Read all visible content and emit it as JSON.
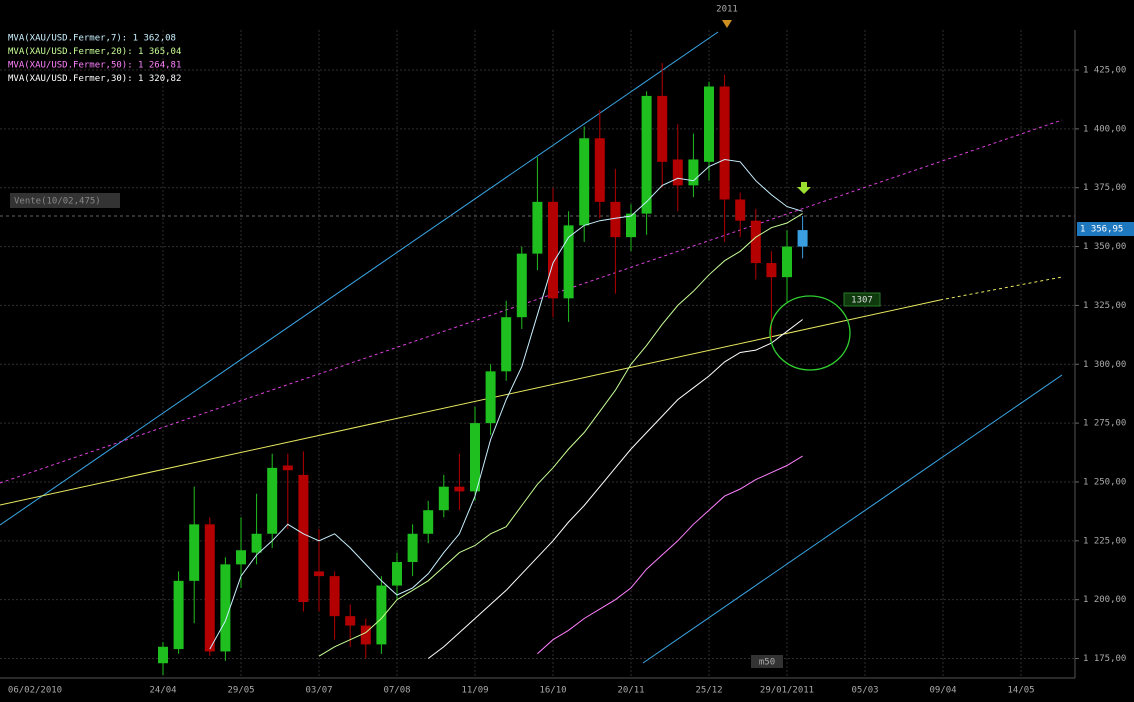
{
  "chart_data": {
    "type": "candlestick",
    "categories": [
      "06/02/2010",
      null,
      null,
      null,
      null,
      null,
      null,
      null,
      null,
      null,
      null,
      "24/04",
      null,
      null,
      null,
      null,
      "29/05",
      null,
      null,
      null,
      null,
      "03/07",
      null,
      null,
      null,
      null,
      "07/08",
      null,
      null,
      null,
      null,
      "11/09",
      null,
      null,
      null,
      null,
      "16/10",
      null,
      null,
      null,
      null,
      "20/11",
      null,
      null,
      null,
      null,
      "25/12",
      null,
      null,
      null,
      null,
      "29/01/2011",
      null,
      null,
      null,
      null,
      "05/03",
      null,
      null,
      null,
      null,
      "09/04",
      null,
      null,
      null,
      null,
      "14/05",
      null,
      null,
      null
    ],
    "open": [
      null,
      null,
      null,
      null,
      null,
      null,
      null,
      null,
      null,
      null,
      null,
      1173,
      1179,
      1208,
      1232,
      1178,
      1215,
      1220,
      1228,
      1257,
      1253,
      1212,
      1210,
      1193,
      1189,
      1181,
      1206,
      1216,
      1228,
      1238,
      1248,
      1246,
      1275,
      1297,
      1320,
      1347,
      1369,
      1328,
      1359,
      1396,
      1369,
      1354,
      1364,
      1414,
      1387,
      1376,
      1386,
      1418,
      1370,
      1361,
      1343,
      1337,
      1350,
      null,
      null,
      null,
      null,
      null,
      null,
      null,
      null,
      null,
      null,
      null,
      null,
      null,
      null,
      null,
      null,
      null
    ],
    "high": [
      null,
      null,
      null,
      null,
      null,
      null,
      null,
      null,
      null,
      null,
      null,
      1182,
      1212,
      1248,
      1235,
      1218,
      1235,
      1245,
      1262,
      1262,
      1263,
      1230,
      1212,
      1198,
      1192,
      1210,
      1220,
      1232,
      1242,
      1253,
      1262,
      1282,
      1300,
      1327,
      1350,
      1388,
      1375,
      1365,
      1401,
      1408,
      1383,
      1368,
      1416,
      1428,
      1402,
      1398,
      1420,
      1423,
      1373,
      1366,
      1348,
      1357,
      1363,
      null,
      null,
      null,
      null,
      null,
      null,
      null,
      null,
      null,
      null,
      null,
      null,
      null,
      null,
      null,
      null,
      null
    ],
    "low": [
      null,
      null,
      null,
      null,
      null,
      null,
      null,
      null,
      null,
      null,
      null,
      1168,
      1177,
      1190,
      1176,
      1174,
      1205,
      1215,
      1222,
      1230,
      1195,
      1195,
      1183,
      1180,
      1175,
      1177,
      1200,
      1210,
      1224,
      1235,
      1238,
      1242,
      1270,
      1293,
      1315,
      1340,
      1320,
      1318,
      1352,
      1362,
      1330,
      1348,
      1355,
      1375,
      1365,
      1371,
      1378,
      1352,
      1354,
      1336,
      1310,
      1326,
      1345,
      null,
      null,
      null,
      null,
      null,
      null,
      null,
      null,
      null,
      null,
      null,
      null,
      null,
      null,
      null,
      null,
      null
    ],
    "close": [
      null,
      null,
      null,
      null,
      null,
      null,
      null,
      null,
      null,
      null,
      null,
      1180,
      1208,
      1232,
      1178,
      1215,
      1221,
      1228,
      1256,
      1255,
      1199,
      1210,
      1193,
      1189,
      1181,
      1206,
      1216,
      1228,
      1238,
      1248,
      1246,
      1275,
      1297,
      1320,
      1347,
      1369,
      1328,
      1359,
      1396,
      1369,
      1354,
      1364,
      1414,
      1386,
      1376,
      1387,
      1418,
      1370,
      1361,
      1343,
      1337,
      1350,
      1357,
      null,
      null,
      null,
      null,
      null,
      null,
      null,
      null,
      null,
      null,
      null,
      null,
      null,
      null,
      null,
      null,
      null
    ],
    "up_color": "#1fbf1f",
    "down_color": "#b30000",
    "last_color": "#3a9ee0",
    "series": [
      {
        "name": "MVA(XAU/USD.Fermer,7): 1 362,08",
        "color": "#c8f0ff",
        "values": [
          null,
          null,
          null,
          null,
          null,
          null,
          null,
          null,
          null,
          null,
          null,
          null,
          null,
          null,
          1179,
          1191,
          1210,
          1219,
          1225,
          1232,
          1228,
          1225,
          1228,
          1222,
          1215,
          1208,
          1202,
          1205,
          1211,
          1220,
          1228,
          1244,
          1268,
          1285,
          1299,
          1321,
          1343,
          1354,
          1359,
          1361,
          1362,
          1363,
          1369,
          1376,
          1379,
          1378,
          1384,
          1387,
          1386,
          1378,
          1372,
          1367,
          1365,
          null,
          null,
          null,
          null,
          null,
          null,
          null,
          null,
          null,
          null,
          null,
          null,
          null,
          null,
          null,
          null,
          null
        ]
      },
      {
        "name": "MVA(XAU/USD.Fermer,20): 1 365,04",
        "color": "#c8ff96",
        "values": [
          null,
          null,
          null,
          null,
          null,
          null,
          null,
          null,
          null,
          null,
          null,
          null,
          null,
          null,
          null,
          null,
          null,
          null,
          null,
          null,
          null,
          1176,
          1180,
          1183,
          1186,
          1192,
          1200,
          1204,
          1208,
          1214,
          1220,
          1223,
          1228,
          1231,
          1240,
          1249,
          1256,
          1264,
          1271,
          1280,
          1289,
          1300,
          1308,
          1317,
          1325,
          1331,
          1338,
          1344,
          1348,
          1354,
          1358,
          1360,
          1364,
          null,
          null,
          null,
          null,
          null,
          null,
          null,
          null,
          null,
          null,
          null,
          null,
          null,
          null,
          null,
          null,
          null
        ]
      },
      {
        "name": "MVA(XAU/USD.Fermer,50): 1 264,81",
        "color": "#ff80ff",
        "values": [
          null,
          null,
          null,
          null,
          null,
          null,
          null,
          null,
          null,
          null,
          null,
          null,
          null,
          null,
          null,
          null,
          null,
          null,
          null,
          null,
          null,
          null,
          null,
          null,
          null,
          null,
          null,
          null,
          null,
          null,
          null,
          null,
          null,
          null,
          null,
          1177,
          1183,
          1187,
          1192,
          1196,
          1200,
          1205,
          1213,
          1219,
          1225,
          1232,
          1238,
          1244,
          1247,
          1251,
          1254,
          1257,
          1261,
          null,
          null,
          null,
          null,
          null,
          null,
          null,
          null,
          null,
          null,
          null,
          null,
          null,
          null,
          null,
          null,
          null
        ]
      },
      {
        "name": "MVA(XAU/USD.Fermer,30): 1 320,82",
        "color": "#ffffff",
        "values": [
          null,
          null,
          null,
          null,
          null,
          null,
          null,
          null,
          null,
          null,
          null,
          null,
          null,
          null,
          null,
          null,
          null,
          null,
          null,
          null,
          null,
          null,
          null,
          null,
          null,
          null,
          null,
          null,
          1175,
          1180,
          1186,
          1192,
          1198,
          1204,
          1211,
          1218,
          1225,
          1233,
          1240,
          1248,
          1256,
          1264,
          1271,
          1278,
          1285,
          1290,
          1295,
          1301,
          1305,
          1306,
          1309,
          1314,
          1319,
          null,
          null,
          null,
          null,
          null,
          null,
          null,
          null,
          null,
          null,
          null,
          null,
          null,
          null,
          null,
          null,
          null
        ]
      }
    ],
    "ylim": [
      1168,
      1442
    ],
    "yticks": [
      {
        "value": 1175,
        "label": "1 175,00"
      },
      {
        "value": 1200,
        "label": "1 200,00"
      },
      {
        "value": 1225,
        "label": "1 225,00"
      },
      {
        "value": 1250,
        "label": "1 250,00"
      },
      {
        "value": 1275,
        "label": "1 275,00"
      },
      {
        "value": 1300,
        "label": "1 300,00"
      },
      {
        "value": 1325,
        "label": "1 325,00"
      },
      {
        "value": 1350,
        "label": "1 350,00"
      },
      {
        "value": 1375,
        "label": "1 375,00"
      },
      {
        "value": 1400,
        "label": "1 400,00"
      },
      {
        "value": 1425,
        "label": "1 425,00"
      }
    ],
    "grid": true,
    "annotations": {
      "sell": "Vente(10/02,475)",
      "level": "1307",
      "price": "1 356,95",
      "year": "2011",
      "ma_tag": "m50"
    }
  }
}
